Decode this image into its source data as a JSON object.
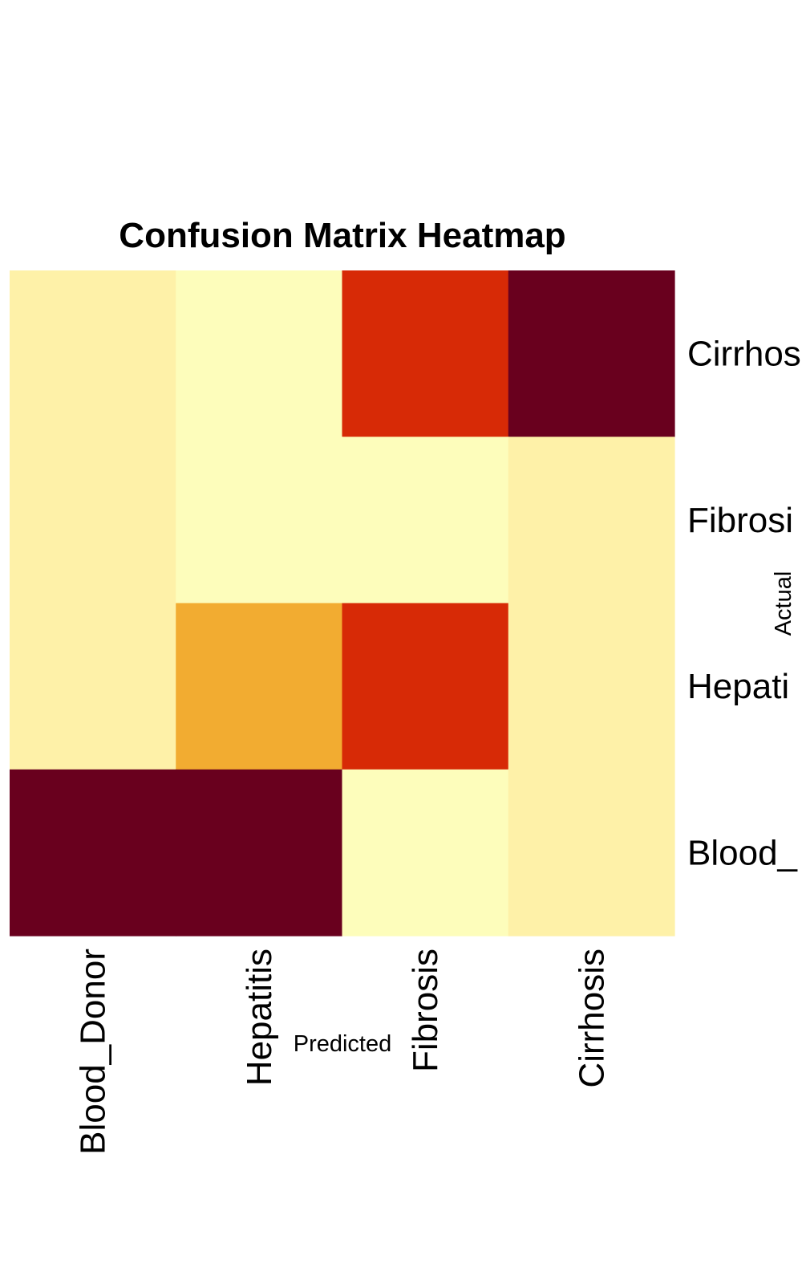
{
  "chart_data": {
    "type": "heatmap",
    "title": "Confusion Matrix Heatmap",
    "xlabel": "Predicted",
    "ylabel": "Actual",
    "x_categories": [
      "Blood_Donor",
      "Hepatitis",
      "Fibrosis",
      "Cirrhosis"
    ],
    "y_categories": [
      "Blood_Donor",
      "Hepatitis",
      "Fibrosis",
      "Cirrhosis"
    ],
    "row_labels_display": [
      "Cirrhos",
      "Fibrosi",
      "Hepati",
      "Blood_"
    ],
    "matrix": [
      {
        "actual": "Cirrhosis",
        "values": [
          0.06,
          0.0,
          0.75,
          1.0
        ]
      },
      {
        "actual": "Fibrosis",
        "values": [
          0.06,
          0.0,
          0.0,
          0.06
        ]
      },
      {
        "actual": "Hepatitis",
        "values": [
          0.06,
          0.45,
          0.75,
          0.06
        ]
      },
      {
        "actual": "Blood_Donor",
        "values": [
          1.0,
          1.0,
          0.0,
          0.06
        ]
      }
    ],
    "colormap": "YlOrRd",
    "colors": {
      "0.00": "#FDFDBB",
      "0.06": "#FEF1A8",
      "0.45": "#F2AC31",
      "0.75": "#D72A06",
      "1.00": "#69001E"
    },
    "grid": false,
    "legend": "none"
  }
}
